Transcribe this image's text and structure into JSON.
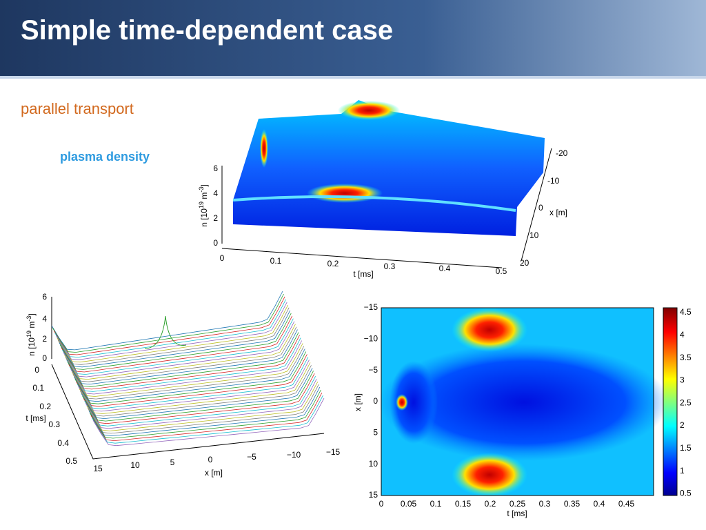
{
  "header": {
    "title": "Simple time-dependent case"
  },
  "section": "parallel transport",
  "caption": "plasma density",
  "surface_plot": {
    "z_label": {
      "base": "n [10",
      "exp1": "19",
      "unit": " m",
      "exp2": "-3",
      "close": "]"
    },
    "z_ticks": [
      "0",
      "2",
      "4",
      "6"
    ],
    "t_ticks": [
      "0",
      "0.1",
      "0.2",
      "0.3",
      "0.4",
      "0.5"
    ],
    "x_ticks": [
      "-20",
      "-10",
      "0",
      "10",
      "20"
    ],
    "t_label": "t [ms]",
    "x_label": "x [m]"
  },
  "waterfall_plot": {
    "z_label": {
      "base": "n [10",
      "exp1": "19",
      "unit": " m",
      "exp2": "-3",
      "close": "]"
    },
    "z_ticks": [
      "0",
      "2",
      "4",
      "6"
    ],
    "t_ticks": [
      "0",
      "0.1",
      "0.2",
      "0.3",
      "0.4",
      "0.5"
    ],
    "x_ticks": [
      "15",
      "10",
      "5",
      "0",
      "−5",
      "−10",
      "−15"
    ],
    "t_label": "t [ms]",
    "x_label": "x [m]"
  },
  "heatmap_plot": {
    "y_ticks": [
      "−15",
      "−10",
      "−5",
      "0",
      "5",
      "10",
      "15"
    ],
    "x_ticks": [
      "0",
      "0.05",
      "0.1",
      "0.15",
      "0.2",
      "0.25",
      "0.3",
      "0.35",
      "0.4",
      "0.45"
    ],
    "colorbar_ticks": [
      "4.5",
      "4",
      "3.5",
      "3",
      "2.5",
      "2",
      "1.5",
      "1",
      "0.5"
    ],
    "x_label": "t [ms]",
    "y_label": "x [m]"
  }
}
